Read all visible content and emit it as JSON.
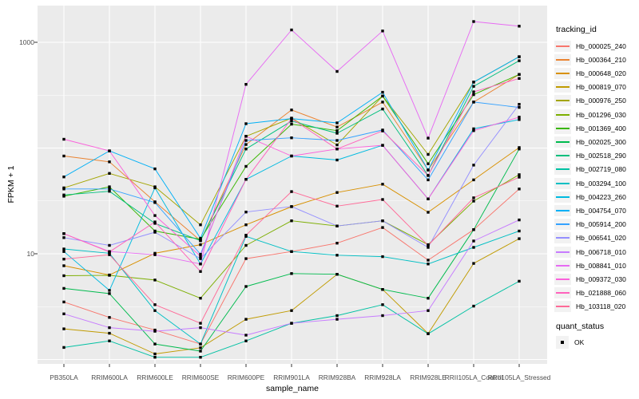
{
  "figure": {
    "y_axis": {
      "title": "FPKM + 1"
    },
    "x_axis": {
      "title": "sample_name"
    },
    "legend": {
      "tracking_title": "tracking_id",
      "quant_title": "quant_status",
      "quant_ok_label": "OK"
    },
    "panel_color": "#EBEBEB",
    "grid_color": "#FFFFFF",
    "tick_color": "#333333",
    "tick_text_color": "#4D4D4D",
    "point_color": "#000000"
  },
  "chart_data": {
    "type": "line",
    "title": "",
    "xlabel": "sample_name",
    "ylabel": "FPKM + 1",
    "y_scale": "log10",
    "y_tick_values": [
      1000,
      10
    ],
    "y_major_gridlines": [
      1,
      10,
      100,
      1000
    ],
    "y_minor_gridlines": [
      3.162,
      31.62,
      316.2
    ],
    "ylim": [
      0.93,
      2300
    ],
    "grid": "on",
    "legend_position": "right",
    "categories": [
      "PB350LA",
      "RRIM600LA",
      "RRIM600LE",
      "RRIM600SE",
      "RRIM600PE",
      "RRIM901LA",
      "RRIM928BA",
      "RRIM928LA",
      "RRIM928LE",
      "RRII105LA_Control",
      "RRII105LA_Stressed"
    ],
    "quant_status_legend": {
      "label": "OK",
      "shape": "square-point",
      "color": "#000000"
    },
    "series": [
      {
        "name": "Hb_000025_240",
        "color": "#F8766D",
        "values": [
          3.5,
          2.5,
          1.9,
          1.4,
          9,
          10.5,
          12.6,
          17.7,
          8.7,
          16.9,
          41
        ]
      },
      {
        "name": "Hb_000364_210",
        "color": "#EA8331",
        "values": [
          84,
          74,
          31,
          13.3,
          108,
          229,
          158,
          272,
          62,
          272,
          496
        ]
      },
      {
        "name": "Hb_000648_020",
        "color": "#D89000",
        "values": [
          7.7,
          6.3,
          10.1,
          12.2,
          18.8,
          27.9,
          38,
          45.5,
          24.7,
          50,
          101
        ]
      },
      {
        "name": "Hb_000819_070",
        "color": "#C09B00",
        "values": [
          1.95,
          1.77,
          1.13,
          1.29,
          2.4,
          2.9,
          6.4,
          4.6,
          1.76,
          8.1,
          13.9
        ]
      },
      {
        "name": "Hb_000976_250",
        "color": "#A3A500",
        "values": [
          42,
          57.5,
          43,
          18.8,
          129,
          192,
          107,
          310,
          87,
          420,
          730
        ]
      },
      {
        "name": "Hb_001296_030",
        "color": "#7CAE00",
        "values": [
          6.2,
          6.25,
          5.65,
          3.8,
          12,
          20.5,
          18.3,
          20.5,
          12.2,
          31.5,
          56
        ]
      },
      {
        "name": "Hb_001369_400",
        "color": "#39B600",
        "values": [
          35,
          43,
          16.4,
          13.7,
          67,
          168,
          146,
          310,
          71,
          320,
          496
        ]
      },
      {
        "name": "Hb_002025_300",
        "color": "#00BB4E",
        "values": [
          4.7,
          4.2,
          1.4,
          1.2,
          4.9,
          6.5,
          6.4,
          4.6,
          3.8,
          16.9,
          98
        ]
      },
      {
        "name": "Hb_002518_290",
        "color": "#00BF7D",
        "values": [
          36,
          39,
          19.4,
          13.3,
          98,
          180,
          138,
          234,
          55,
          383,
          669
        ]
      },
      {
        "name": "Hb_002719_080",
        "color": "#00C1A3",
        "values": [
          1.3,
          1.5,
          1.05,
          1.05,
          1.5,
          2.2,
          2.6,
          3.3,
          1.75,
          3.2,
          5.5
        ]
      },
      {
        "name": "Hb_003294_100",
        "color": "#00BFC4",
        "values": [
          11.1,
          10.1,
          2.9,
          1.4,
          14.6,
          10.5,
          9.7,
          9.4,
          8.0,
          11.5,
          16.4
        ]
      },
      {
        "name": "Hb_004223_260",
        "color": "#00BAE0",
        "values": [
          10.5,
          4.5,
          42,
          8.0,
          50.5,
          84,
          77,
          106,
          33,
          152,
          186
        ]
      },
      {
        "name": "Hb_004754_070",
        "color": "#00B0F6",
        "values": [
          53.3,
          94,
          63.5,
          14,
          170,
          190,
          173,
          337,
          62,
          420,
          730
        ]
      },
      {
        "name": "Hb_005914_200",
        "color": "#35A2FF",
        "values": [
          41,
          41,
          30.5,
          9.9,
          118,
          125,
          118,
          148,
          50,
          272,
          242
        ]
      },
      {
        "name": "Hb_006541_020",
        "color": "#9590FF",
        "values": [
          14.2,
          12,
          16,
          9.0,
          24.8,
          28,
          18.3,
          20.5,
          11.5,
          69,
          259
        ]
      },
      {
        "name": "Hb_006718_010",
        "color": "#C77CFF",
        "values": [
          2.7,
          2.0,
          1.85,
          2.0,
          1.7,
          2.2,
          2.4,
          2.6,
          2.9,
          13.2,
          20.9
        ]
      },
      {
        "name": "Hb_008841_010",
        "color": "#E76BF3",
        "values": [
          15.5,
          10.5,
          9.8,
          8.0,
          400,
          1310,
          530,
          1280,
          124,
          1570,
          1420
        ]
      },
      {
        "name": "Hb_009372_030",
        "color": "#FA62DB",
        "values": [
          121,
          94,
          23,
          9.5,
          129,
          84,
          98,
          106,
          33,
          146,
          196
        ]
      },
      {
        "name": "Hb_021888_060",
        "color": "#FF62BC",
        "values": [
          15.5,
          10.4,
          20,
          6.8,
          50.5,
          190,
          98,
          145,
          55,
          340,
          455
        ]
      },
      {
        "name": "Hb_103118_020",
        "color": "#FF6A98",
        "values": [
          8.9,
          9.8,
          3.3,
          2.2,
          15,
          38.7,
          28.2,
          32.6,
          12,
          33.8,
          53
        ]
      }
    ]
  }
}
